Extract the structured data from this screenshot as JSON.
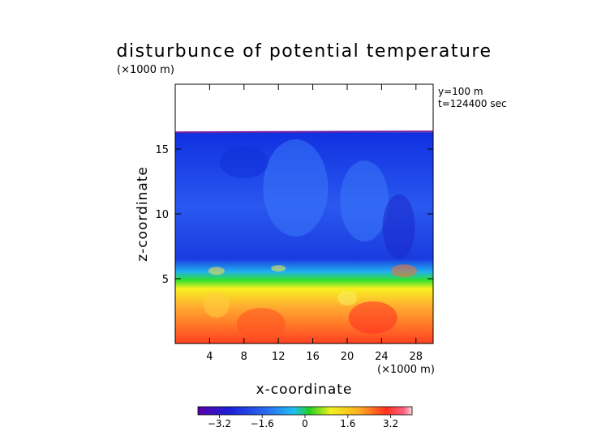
{
  "chart_data": {
    "type": "heatmap",
    "title": "disturbunce of potential temperature",
    "z_scale_note": "(×1000 m)",
    "x_scale_note": "(×1000 m)",
    "annotation_y": "y=100 m",
    "annotation_t": "t=124400 sec",
    "xlabel": "x-coordinate",
    "ylabel": "z-coordinate",
    "xlim": [
      0,
      30
    ],
    "ylim": [
      0,
      20
    ],
    "x_ticks": [
      4,
      8,
      12,
      16,
      20,
      24,
      28
    ],
    "x_tick_labels": [
      "4",
      "8",
      "12",
      "16",
      "20",
      "24",
      "28"
    ],
    "y_ticks": [
      5,
      10,
      15
    ],
    "y_tick_labels": [
      "5",
      "10",
      "15"
    ],
    "data_top_z": 16.3,
    "colorbar": {
      "range": [
        -4,
        4
      ],
      "ticks": [
        -3.2,
        -1.6,
        0,
        1.6,
        3.2
      ],
      "tick_labels": [
        "−3.2",
        "−1.6",
        "0",
        "1.6",
        "3.2"
      ]
    },
    "field_description_levels": [
      {
        "z_range": [
          0,
          4.5
        ],
        "value_approx": 3.0
      },
      {
        "z_range": [
          4.5,
          6.5
        ],
        "value_approx": 0.5
      },
      {
        "z_range": [
          6.5,
          16.3
        ],
        "value_approx": -2.4
      }
    ]
  }
}
